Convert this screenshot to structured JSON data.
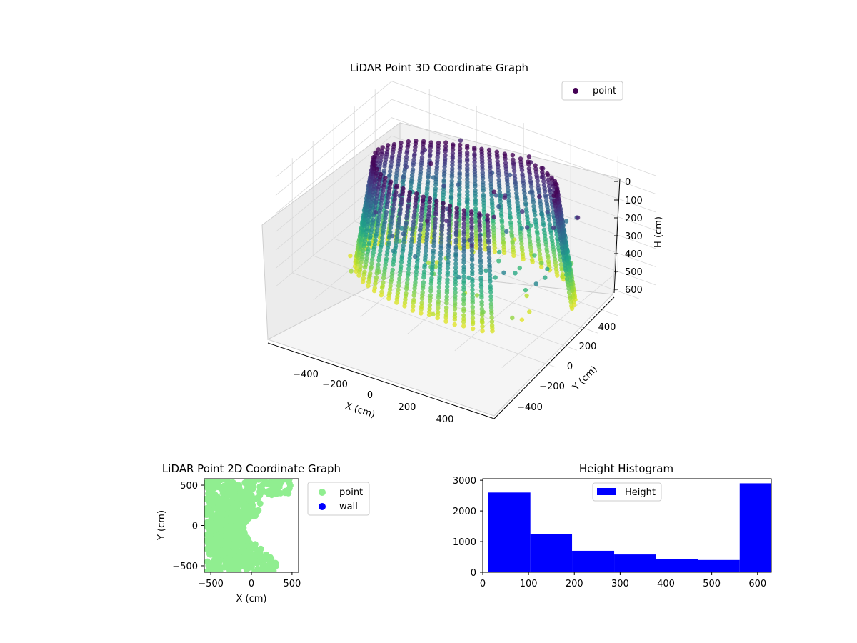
{
  "figure": {
    "width": 1200,
    "height": 900
  },
  "chart_data": [
    {
      "type": "scatter",
      "projection": "3d",
      "title": "LiDAR Point 3D Coordinate Graph",
      "xlabel": "X (cm)",
      "ylabel": "Y (cm)",
      "zlabel": "H (cm)",
      "xticks": [
        "−400",
        "−200",
        "0",
        "200",
        "400"
      ],
      "yticks": [
        "−400",
        "−200",
        "0",
        "200",
        "400"
      ],
      "zticks": [
        "0",
        "100",
        "200",
        "300",
        "400",
        "500",
        "600"
      ],
      "xlim": [
        -560,
        560
      ],
      "ylim": [
        -560,
        560
      ],
      "zlim": [
        0,
        630
      ],
      "zaxis_inverted": true,
      "colormap": "viridis",
      "legend": {
        "entries": [
          "point"
        ],
        "loc": "upper right",
        "marker_color": "#440154"
      },
      "series": [
        {
          "name": "point",
          "description_shape": "circular wall of points around origin, radius ~300–450 cm, heights 0–600 cm",
          "ring_radius_range": [
            300,
            450
          ],
          "h_range": [
            0,
            600
          ]
        }
      ],
      "grid": true
    },
    {
      "type": "scatter",
      "title": "LiDAR Point 2D Coordinate Graph",
      "xlabel": "X (cm)",
      "ylabel": "Y (cm)",
      "xticks": [
        "−500",
        "0",
        "500"
      ],
      "yticks": [
        "500",
        "0",
        "−500"
      ],
      "xlim": [
        -580,
        580
      ],
      "ylim": [
        -580,
        580
      ],
      "legend": {
        "loc": "outside right",
        "entries": [
          {
            "label": "point",
            "color": "#90ee90"
          },
          {
            "label": "wall",
            "color": "#0000ff"
          }
        ]
      },
      "series": [
        {
          "name": "point",
          "color": "#90ee90"
        },
        {
          "name": "wall",
          "color": "#0000ff"
        }
      ]
    },
    {
      "type": "bar",
      "histogram": true,
      "title": "Height Histogram",
      "xticks": [
        "0",
        "100",
        "200",
        "300",
        "400",
        "500",
        "600"
      ],
      "yticks": [
        "0",
        "1000",
        "2000",
        "3000"
      ],
      "xlim": [
        0,
        630
      ],
      "ylim": [
        0,
        3050
      ],
      "legend": {
        "entries": [
          "Height"
        ],
        "loc": "upper center",
        "color": "#0000ff"
      },
      "bin_edges": [
        12,
        104,
        195,
        287,
        378,
        470,
        561,
        630
      ],
      "series": [
        {
          "name": "Height",
          "color": "#0000ff",
          "values": [
            2600,
            1250,
            700,
            580,
            420,
            400,
            2900
          ]
        }
      ]
    }
  ]
}
